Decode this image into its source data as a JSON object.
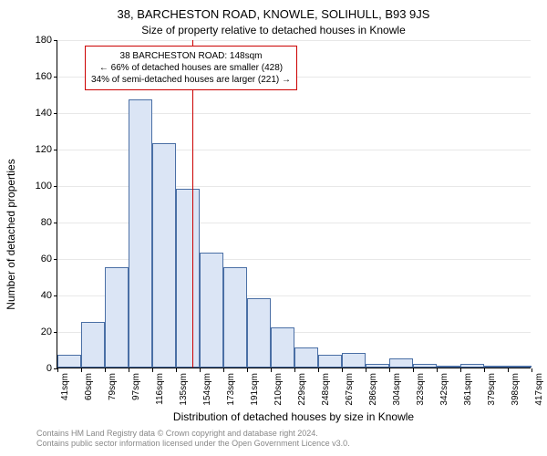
{
  "title_main": "38, BARCHESTON ROAD, KNOWLE, SOLIHULL, B93 9JS",
  "title_sub": "Size of property relative to detached houses in Knowle",
  "ylabel": "Number of detached properties",
  "xlabel": "Distribution of detached houses by size in Knowle",
  "chart": {
    "type": "histogram",
    "background_color": "#ffffff",
    "grid_color": "#e8e8e8",
    "bar_fill": "#dbe5f5",
    "bar_border": "#4a6fa5",
    "marker_color": "#cc0000",
    "ylim": [
      0,
      180
    ],
    "ytick_step": 20,
    "yticks": [
      0,
      20,
      40,
      60,
      80,
      100,
      120,
      140,
      160,
      180
    ],
    "xticks": [
      "41sqm",
      "60sqm",
      "79sqm",
      "97sqm",
      "116sqm",
      "135sqm",
      "154sqm",
      "173sqm",
      "191sqm",
      "210sqm",
      "229sqm",
      "248sqm",
      "267sqm",
      "286sqm",
      "304sqm",
      "323sqm",
      "342sqm",
      "361sqm",
      "379sqm",
      "398sqm",
      "417sqm"
    ],
    "values": [
      7,
      25,
      55,
      147,
      123,
      98,
      63,
      55,
      38,
      22,
      11,
      7,
      8,
      2,
      5,
      2,
      1,
      2,
      1,
      1
    ],
    "marker_index": 5.7,
    "annotation": {
      "line1": "38 BARCHESTON ROAD: 148sqm",
      "line2": "← 66% of detached houses are smaller (428)",
      "line3": "34% of semi-detached houses are larger (221) →"
    }
  },
  "credits": {
    "line1": "Contains HM Land Registry data © Crown copyright and database right 2024.",
    "line2": "Contains public sector information licensed under the Open Government Licence v3.0."
  }
}
